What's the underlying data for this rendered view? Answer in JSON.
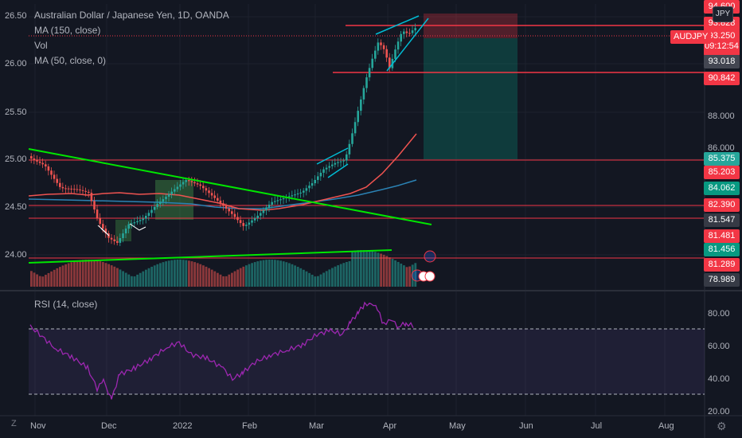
{
  "legend": {
    "title": "Australian Dollar / Japanese Yen, 1D, OANDA",
    "ma150": "MA (150, close)",
    "vol": "Vol",
    "ma50": "MA (50, close, 0)",
    "rsi": "RSI (14, close)"
  },
  "left_axis": [
    "26.50",
    "26.00",
    "25.50",
    "25.00",
    "24.50",
    "24.00"
  ],
  "right_axis": [
    "88.000",
    "86.000"
  ],
  "rsi_axis": [
    "80.00",
    "60.00",
    "40.00",
    "20.00"
  ],
  "time_axis": [
    "Nov",
    "Dec",
    "2022",
    "Feb",
    "Mar",
    "Apr",
    "May",
    "Jun",
    "Jul",
    "Aug"
  ],
  "price_tags": [
    {
      "text": "94.600",
      "color": "#f23645"
    },
    {
      "text": "93.828",
      "color": "#f23645"
    },
    {
      "text": "93.018",
      "color": "#434651"
    },
    {
      "text": "90.842",
      "color": "#f23645"
    },
    {
      "text": "85.375",
      "color": "#26a69a"
    },
    {
      "text": "85.203",
      "color": "#f23645"
    },
    {
      "text": "84.062",
      "color": "#089981"
    },
    {
      "text": "82.390",
      "color": "#f23645"
    },
    {
      "text": "81.547",
      "color": "#363a45"
    },
    {
      "text": "81.481",
      "color": "#f23645"
    },
    {
      "text": "81.456",
      "color": "#089981"
    },
    {
      "text": "81.289",
      "color": "#f23645"
    },
    {
      "text": "78.989",
      "color": "#363a45"
    }
  ],
  "current_price": {
    "price": "93.250",
    "countdown": "09:12:54"
  },
  "symbol": "AUDJPY",
  "currency": "JPY",
  "corner_z": "Z",
  "colors": {
    "up": "#26a69a",
    "down": "#ef5350",
    "ma150": "#2b82b4",
    "ma50": "#ef5350",
    "trend": "#00e600",
    "rsi": "#9c27b0",
    "level": "#f23645"
  }
}
